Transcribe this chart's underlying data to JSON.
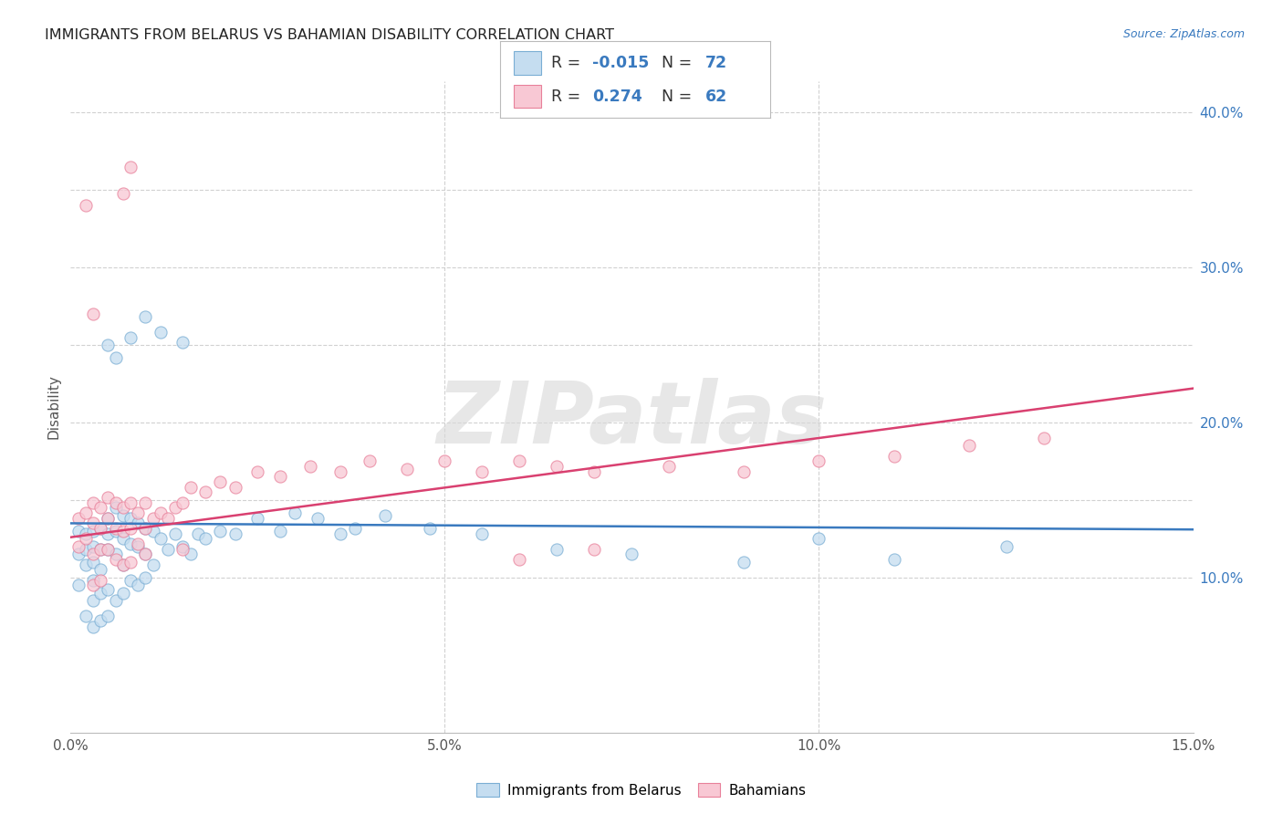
{
  "title": "IMMIGRANTS FROM BELARUS VS BAHAMIAN DISABILITY CORRELATION CHART",
  "source": "Source: ZipAtlas.com",
  "ylabel": "Disability",
  "xlim": [
    0.0,
    0.15
  ],
  "ylim": [
    0.0,
    0.42
  ],
  "xticks": [
    0.0,
    0.05,
    0.1,
    0.15
  ],
  "xticklabels": [
    "0.0%",
    "5.0%",
    "10.0%",
    "15.0%"
  ],
  "yticks_right": [
    0.1,
    0.2,
    0.3,
    0.4
  ],
  "ytickslabels_right": [
    "10.0%",
    "20.0%",
    "30.0%",
    "40.0%"
  ],
  "legend_blue_label": "Immigrants from Belarus",
  "legend_pink_label": "Bahamians",
  "r_blue": "-0.015",
  "n_blue": "72",
  "r_pink": "0.274",
  "n_pink": "62",
  "color_blue_fill": "#c5ddf0",
  "color_blue_edge": "#7aaed4",
  "color_pink_fill": "#f8c8d4",
  "color_pink_edge": "#e8809a",
  "line_blue_color": "#3a7abf",
  "line_pink_color": "#d94070",
  "watermark": "ZIPatlas",
  "background_color": "#ffffff",
  "grid_color": "#cccccc",
  "text_color_dark": "#333333",
  "text_color_blue": "#3a7abf",
  "blue_x": [
    0.001,
    0.001,
    0.001,
    0.002,
    0.002,
    0.002,
    0.002,
    0.003,
    0.003,
    0.003,
    0.003,
    0.003,
    0.003,
    0.004,
    0.004,
    0.004,
    0.004,
    0.004,
    0.005,
    0.005,
    0.005,
    0.005,
    0.005,
    0.006,
    0.006,
    0.006,
    0.006,
    0.007,
    0.007,
    0.007,
    0.007,
    0.008,
    0.008,
    0.008,
    0.009,
    0.009,
    0.009,
    0.01,
    0.01,
    0.01,
    0.011,
    0.011,
    0.012,
    0.013,
    0.014,
    0.015,
    0.016,
    0.017,
    0.018,
    0.02,
    0.022,
    0.025,
    0.028,
    0.03,
    0.033,
    0.036,
    0.038,
    0.042,
    0.048,
    0.055,
    0.065,
    0.075,
    0.09,
    0.1,
    0.11,
    0.125,
    0.005,
    0.008,
    0.01,
    0.015,
    0.006,
    0.012
  ],
  "blue_y": [
    0.13,
    0.115,
    0.095,
    0.128,
    0.118,
    0.108,
    0.075,
    0.13,
    0.12,
    0.11,
    0.098,
    0.085,
    0.068,
    0.132,
    0.118,
    0.105,
    0.09,
    0.072,
    0.138,
    0.128,
    0.118,
    0.092,
    0.075,
    0.145,
    0.13,
    0.115,
    0.085,
    0.14,
    0.125,
    0.108,
    0.09,
    0.138,
    0.122,
    0.098,
    0.135,
    0.12,
    0.095,
    0.132,
    0.115,
    0.1,
    0.13,
    0.108,
    0.125,
    0.118,
    0.128,
    0.12,
    0.115,
    0.128,
    0.125,
    0.13,
    0.128,
    0.138,
    0.13,
    0.142,
    0.138,
    0.128,
    0.132,
    0.14,
    0.132,
    0.128,
    0.118,
    0.115,
    0.11,
    0.125,
    0.112,
    0.12,
    0.25,
    0.255,
    0.268,
    0.252,
    0.242,
    0.258
  ],
  "pink_x": [
    0.001,
    0.001,
    0.002,
    0.002,
    0.003,
    0.003,
    0.003,
    0.003,
    0.004,
    0.004,
    0.004,
    0.004,
    0.005,
    0.005,
    0.005,
    0.006,
    0.006,
    0.006,
    0.007,
    0.007,
    0.007,
    0.008,
    0.008,
    0.008,
    0.009,
    0.009,
    0.01,
    0.01,
    0.01,
    0.011,
    0.012,
    0.013,
    0.014,
    0.015,
    0.015,
    0.016,
    0.018,
    0.02,
    0.022,
    0.025,
    0.028,
    0.032,
    0.036,
    0.04,
    0.045,
    0.05,
    0.055,
    0.06,
    0.065,
    0.07,
    0.08,
    0.09,
    0.1,
    0.11,
    0.12,
    0.13,
    0.007,
    0.008,
    0.002,
    0.003,
    0.06,
    0.07
  ],
  "pink_y": [
    0.138,
    0.12,
    0.142,
    0.125,
    0.148,
    0.135,
    0.115,
    0.095,
    0.145,
    0.132,
    0.118,
    0.098,
    0.152,
    0.138,
    0.118,
    0.148,
    0.132,
    0.112,
    0.145,
    0.13,
    0.108,
    0.148,
    0.132,
    0.11,
    0.142,
    0.122,
    0.148,
    0.132,
    0.115,
    0.138,
    0.142,
    0.138,
    0.145,
    0.148,
    0.118,
    0.158,
    0.155,
    0.162,
    0.158,
    0.168,
    0.165,
    0.172,
    0.168,
    0.175,
    0.17,
    0.175,
    0.168,
    0.175,
    0.172,
    0.168,
    0.172,
    0.168,
    0.175,
    0.178,
    0.185,
    0.19,
    0.348,
    0.365,
    0.34,
    0.27,
    0.112,
    0.118
  ],
  "blue_line_x": [
    0.0,
    0.15
  ],
  "blue_line_y": [
    0.135,
    0.131
  ],
  "pink_line_x": [
    0.0,
    0.15
  ],
  "pink_line_y": [
    0.126,
    0.222
  ]
}
